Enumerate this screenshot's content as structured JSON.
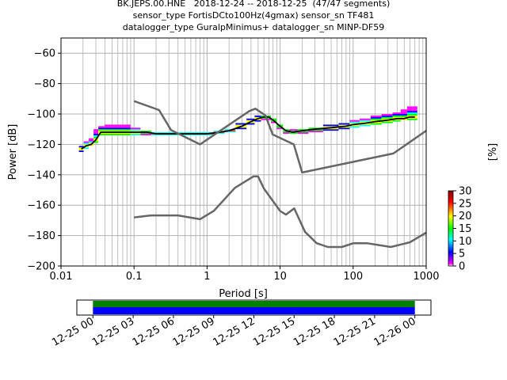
{
  "header": {
    "title_lines": [
      "BK.JEPS.00.HNE   2018-12-24 -- 2018-12-25  (47/47 segments)",
      "sensor_type FortisDCto100Hz(4gmax) sensor_sn TF481",
      "datalogger_type GuralpMinimus+ datalogger_sn MINP-DF59"
    ]
  },
  "chart_data": [
    {
      "type": "heatmap",
      "xlabel": "Period [s]",
      "ylabel": "Power [dB]",
      "xscale": "log",
      "xlim": [
        0.01,
        1000
      ],
      "ylim": [
        -200,
        -50
      ],
      "x_ticks": [
        "0.01",
        "0.1",
        "1",
        "10",
        "100",
        "1000"
      ],
      "y_ticks": [
        "−60",
        "−80",
        "−100",
        "−120",
        "−140",
        "−160",
        "−180",
        "−200"
      ],
      "x_tick_values": [
        0.01,
        0.1,
        1,
        10,
        100,
        1000
      ],
      "y_tick_values": [
        -60,
        -80,
        -100,
        -120,
        -140,
        -160,
        -180,
        -200
      ],
      "grid": true,
      "colorbar": {
        "label": "[%]",
        "ticks": [
          "0",
          "5",
          "10",
          "15",
          "20",
          "25",
          "30"
        ],
        "tick_values": [
          0,
          5,
          10,
          15,
          20,
          25,
          30
        ],
        "range": [
          0,
          30
        ],
        "colors": [
          "#ffffff",
          "#ff00ff",
          "#0000ff",
          "#00ffff",
          "#00ff00",
          "#ffff00",
          "#ff0000",
          "#800000"
        ]
      },
      "series": [
        {
          "role": "mode",
          "color": "#000000",
          "x": [
            0.019,
            0.022,
            0.026,
            0.03,
            0.035,
            0.045,
            0.06,
            0.08,
            0.1,
            0.15,
            0.2,
            0.3,
            0.5,
            0.8,
            1,
            1.5,
            2,
            3,
            4,
            5,
            6,
            7,
            8,
            10,
            12,
            15,
            20,
            30,
            50,
            80,
            100,
            150,
            200,
            300,
            400,
            500,
            600,
            700
          ],
          "y": [
            -123,
            -121,
            -120,
            -117,
            -112,
            -112,
            -112,
            -112,
            -112,
            -112,
            -113,
            -113,
            -113,
            -113,
            -113,
            -112,
            -111,
            -108,
            -105,
            -103,
            -102,
            -102,
            -104,
            -108,
            -111,
            -112,
            -111,
            -110,
            -109,
            -108,
            -107,
            -106,
            -105,
            -104,
            -103,
            -103,
            -102,
            -102
          ]
        },
        {
          "role": "min_band",
          "color": "#ff00ff",
          "x": [
            0.019,
            0.022,
            0.026,
            0.03,
            0.035,
            0.045,
            0.06,
            0.08,
            0.1,
            0.15,
            0.2,
            0.3,
            0.5,
            0.8,
            1,
            1.5,
            2,
            3,
            4,
            5,
            6,
            7,
            8,
            10,
            12,
            15,
            20,
            30,
            50,
            80,
            100,
            150,
            200,
            300,
            400,
            500,
            600,
            700
          ],
          "y": [
            -125,
            -123,
            -121,
            -119,
            -114,
            -114,
            -114,
            -114,
            -114,
            -114,
            -114,
            -114,
            -114,
            -114,
            -114,
            -113,
            -112,
            -110,
            -107,
            -105,
            -104,
            -104,
            -106,
            -110,
            -113,
            -113,
            -113,
            -112,
            -111,
            -110,
            -109,
            -108,
            -107,
            -106,
            -105,
            -104,
            -104,
            -104
          ]
        },
        {
          "role": "max_band",
          "color": "#8000ff",
          "x": [
            0.019,
            0.022,
            0.026,
            0.03,
            0.035,
            0.045,
            0.06,
            0.08,
            0.1,
            0.15,
            0.2,
            0.3,
            0.5,
            0.8,
            1,
            1.5,
            2,
            3,
            4,
            5,
            6,
            7,
            8,
            10,
            12,
            15,
            20,
            30,
            50,
            80,
            100,
            150,
            200,
            300,
            400,
            500,
            600,
            700
          ],
          "y": [
            -121,
            -118,
            -116,
            -110,
            -108,
            -107,
            -107,
            -107,
            -109,
            -111,
            -112,
            -112,
            -112,
            -112,
            -112,
            -111,
            -110,
            -106,
            -103,
            -101,
            -101,
            -101,
            -103,
            -107,
            -110,
            -110,
            -110,
            -109,
            -107,
            -106,
            -104,
            -103,
            -101,
            -100,
            -99,
            -97,
            -95,
            -95
          ]
        },
        {
          "role": "NHNM",
          "color": "#666666",
          "x": [
            0.1,
            0.22,
            0.32,
            0.8,
            3.8,
            4.6,
            6.3,
            7.9,
            15.4,
            20,
            354.8,
            1000
          ],
          "y": [
            -91.5,
            -97.4,
            -110.5,
            -120,
            -98,
            -96.5,
            -101,
            -113.5,
            -120,
            -138.5,
            -126,
            -111
          ]
        },
        {
          "role": "NLNM",
          "color": "#666666",
          "x": [
            0.1,
            0.17,
            0.4,
            0.8,
            1.24,
            2.4,
            4.3,
            5,
            6,
            10,
            12,
            15.6,
            21.9,
            31.6,
            45,
            70,
            101,
            154,
            328,
            600,
            1000
          ],
          "y": [
            -168,
            -166.7,
            -166.7,
            -169.2,
            -163.7,
            -148.6,
            -141.1,
            -141.1,
            -149,
            -163.8,
            -166.2,
            -162.1,
            -177.5,
            -185,
            -187.5,
            -187.5,
            -185,
            -185,
            -187.5,
            -184.4,
            -178
          ]
        }
      ]
    },
    {
      "type": "timeline",
      "x_ticks": [
        "12-25 00",
        "12-25 03",
        "12-25 06",
        "12-25 09",
        "12-25 12",
        "12-25 15",
        "12-25 18",
        "12-25 21",
        "12-26 00"
      ],
      "x_tick_hours": [
        0,
        3,
        6,
        9,
        12,
        15,
        18,
        21,
        24
      ],
      "xlim_hours": [
        -1.2,
        25.2
      ],
      "series": [
        {
          "role": "data_available",
          "color": "#008000",
          "start_hour": 0,
          "end_hour": 24
        },
        {
          "role": "segments_used",
          "color": "#0000ff",
          "start_hour": 0,
          "end_hour": 24
        }
      ]
    }
  ]
}
